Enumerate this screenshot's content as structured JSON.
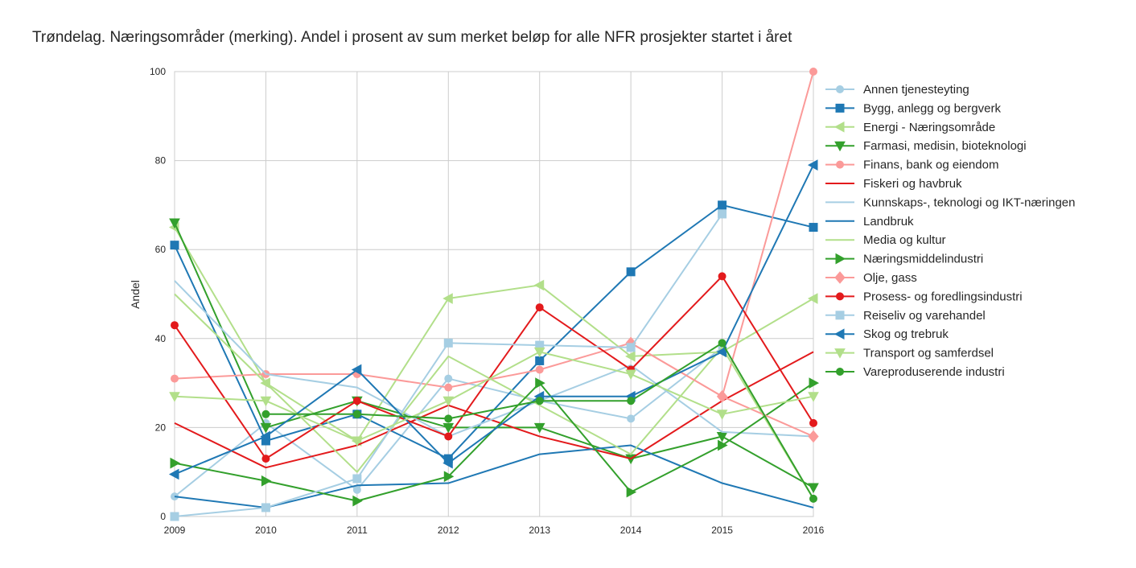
{
  "chart_data": {
    "type": "line",
    "title": "Trøndelag. Næringsområder (merking). Andel i prosent av sum merket beløp for alle NFR prosjekter startet i året",
    "xlabel": "",
    "ylabel": "Andel",
    "x": [
      "2009",
      "2010",
      "2011",
      "2012",
      "2013",
      "2014",
      "2015",
      "2016"
    ],
    "ylim": [
      0,
      100
    ],
    "yticks": [
      "0",
      "20",
      "40",
      "60",
      "80",
      "100"
    ],
    "grid": true,
    "legend_position": "right",
    "series": [
      {
        "name": "Annen tjenesteyting",
        "color": "#a6cee3",
        "marker": "circle",
        "values": [
          4.5,
          21,
          6,
          31,
          26,
          22,
          38,
          null
        ]
      },
      {
        "name": "Bygg, anlegg og bergverk",
        "color": "#1f78b4",
        "marker": "square",
        "values": [
          61,
          17,
          23,
          13,
          35,
          55,
          70,
          65
        ]
      },
      {
        "name": "Energi - Næringsområde",
        "color": "#b2df8a",
        "marker": "triangle-left",
        "values": [
          65,
          30,
          17,
          49,
          52,
          36,
          37,
          49
        ]
      },
      {
        "name": "Farmasi, medisin, bioteknologi",
        "color": "#33a02c",
        "marker": "triangle-down",
        "values": [
          66,
          20,
          26,
          20,
          20,
          13,
          18,
          6.5
        ]
      },
      {
        "name": "Finans, bank og eiendom",
        "color": "#fb9a99",
        "marker": "circle",
        "values": [
          31,
          32,
          32,
          29,
          33,
          39,
          27,
          100
        ]
      },
      {
        "name": "Fiskeri og havbruk",
        "color": "#e31a1c",
        "marker": "none",
        "values": [
          21,
          11,
          16,
          25,
          18,
          13,
          26,
          37
        ]
      },
      {
        "name": "Kunnskaps-, teknologi og IKT-næringen",
        "color": "#a6cee3",
        "marker": "none",
        "values": [
          53,
          32,
          29,
          18,
          26,
          34,
          19,
          18
        ]
      },
      {
        "name": "Landbruk",
        "color": "#1f78b4",
        "marker": "none",
        "values": [
          4.5,
          2,
          7,
          7.5,
          14,
          16,
          7.5,
          2
        ]
      },
      {
        "name": "Media og kultur",
        "color": "#b2df8a",
        "marker": "none",
        "values": [
          50,
          30,
          10,
          36,
          25,
          14,
          38,
          4
        ]
      },
      {
        "name": "Næringsmiddelindustri",
        "color": "#33a02c",
        "marker": "triangle-right",
        "values": [
          12,
          8,
          3.5,
          9,
          30,
          5.5,
          16,
          30
        ]
      },
      {
        "name": "Olje, gass",
        "color": "#fb9a99",
        "marker": "diamond",
        "values": [
          null,
          null,
          null,
          null,
          null,
          39,
          27,
          18
        ]
      },
      {
        "name": "Prosess- og foredlingsindustri",
        "color": "#e31a1c",
        "marker": "circle",
        "values": [
          43,
          13,
          26,
          18,
          47,
          33,
          54,
          21
        ]
      },
      {
        "name": "Reiseliv og varehandel",
        "color": "#a6cee3",
        "marker": "square",
        "values": [
          0,
          2,
          8.5,
          39,
          38.5,
          38,
          68,
          null
        ]
      },
      {
        "name": "Skog og trebruk",
        "color": "#1f78b4",
        "marker": "triangle-left",
        "values": [
          9.5,
          18,
          33,
          12,
          27,
          27,
          37,
          79
        ]
      },
      {
        "name": "Transport og samferdsel",
        "color": "#b2df8a",
        "marker": "triangle-down",
        "values": [
          27,
          26,
          17,
          26,
          37,
          32,
          23,
          27
        ]
      },
      {
        "name": "Vareproduserende industri",
        "color": "#33a02c",
        "marker": "circle",
        "values": [
          null,
          23,
          23,
          22,
          26,
          26,
          39,
          4
        ]
      }
    ]
  }
}
